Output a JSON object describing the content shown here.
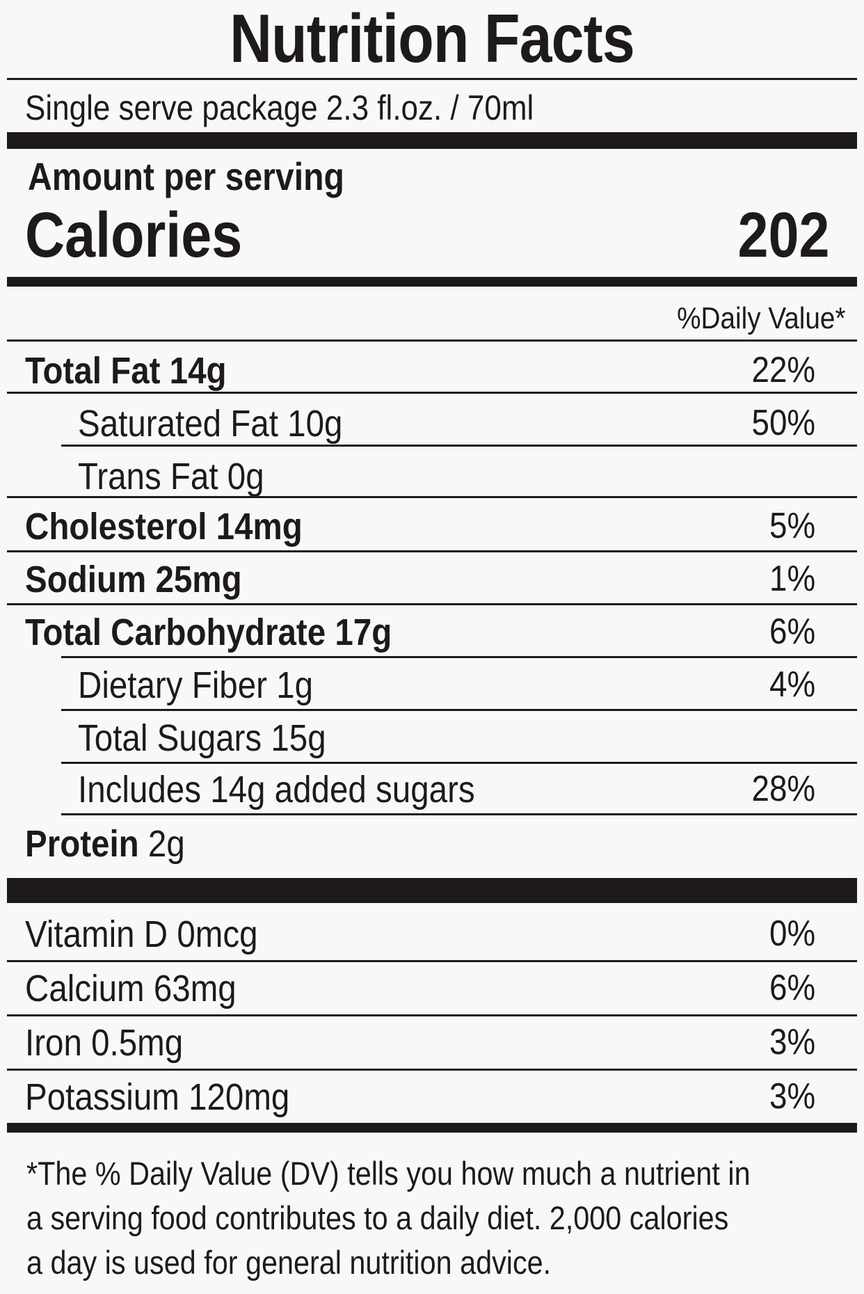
{
  "title": "Nutrition Facts",
  "serving_size": "Single serve package 2.3 fl.oz. / 70ml",
  "amount_per_serving": "Amount per serving",
  "calories_label": "Calories",
  "calories_value": "202",
  "dv_header": "%Daily Value*",
  "nutrients": {
    "total_fat": {
      "name": "Total Fat",
      "amount": "14g",
      "dv": "22%"
    },
    "saturated_fat": {
      "name": "Saturated Fat",
      "amount": "10g",
      "dv": "50%"
    },
    "trans_fat": {
      "name": "Trans Fat",
      "amount": "0g"
    },
    "cholesterol": {
      "name": "Cholesterol",
      "amount": "14mg",
      "dv": "5%"
    },
    "sodium": {
      "name": "Sodium",
      "amount": "25mg",
      "dv": "1%"
    },
    "total_carbohydrate": {
      "name": "Total Carbohydrate",
      "amount": "17g",
      "dv": "6%"
    },
    "dietary_fiber": {
      "name": "Dietary Fiber",
      "amount": "1g",
      "dv": "4%"
    },
    "total_sugars": {
      "name": "Total Sugars",
      "amount": "15g"
    },
    "added_sugars": {
      "name": "Includes 14g added sugars",
      "dv": "28%"
    },
    "protein": {
      "name": "Protein",
      "amount": "2g"
    }
  },
  "vitamins": {
    "vitamin_d": {
      "text": "Vitamin D 0mcg",
      "dv": "0%"
    },
    "calcium": {
      "text": "Calcium 63mg",
      "dv": "6%"
    },
    "iron": {
      "text": "Iron 0.5mg",
      "dv": "3%"
    },
    "potassium": {
      "text": "Potassium 120mg",
      "dv": "3%"
    }
  },
  "footnote": {
    "line1": "*The % Daily Value (DV) tells you how much a nutrient in",
    "line2": "a serving food contributes to a daily diet. 2,000 calories",
    "line3": "a day is used for general nutrition advice."
  },
  "colors": {
    "ink": "#1e1a1c",
    "background": "#f8f8f8"
  }
}
